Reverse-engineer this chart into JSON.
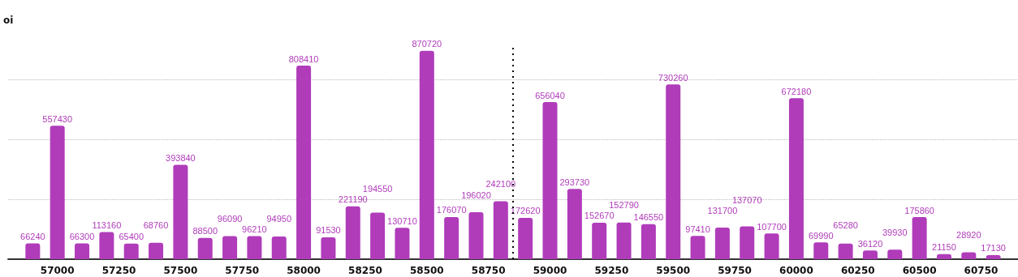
{
  "chart_data": {
    "type": "bar",
    "ylabel": "oi",
    "x": [
      56900,
      57000,
      57100,
      57200,
      57300,
      57400,
      57500,
      57600,
      57700,
      57800,
      57900,
      58000,
      58100,
      58200,
      58300,
      58400,
      58500,
      58600,
      58700,
      58800,
      58900,
      59000,
      59100,
      59200,
      59300,
      59400,
      59500,
      59600,
      59700,
      59800,
      59900,
      60000,
      60100,
      60200,
      60300,
      60400,
      60500,
      60600,
      60700,
      60800
    ],
    "values": [
      66240,
      557430,
      66300,
      113160,
      65400,
      68760,
      393840,
      88500,
      96090,
      96210,
      94950,
      808410,
      91530,
      221190,
      194550,
      130710,
      870720,
      176070,
      196020,
      242100,
      172620,
      656040,
      293730,
      152670,
      152790,
      146550,
      730260,
      97410,
      131700,
      137070,
      107700,
      672180,
      69990,
      65280,
      36120,
      39930,
      175860,
      21150,
      28920,
      17130
    ],
    "color": "#b03cba",
    "xlim": [
      56800,
      60900
    ],
    "xticks": [
      57000,
      57250,
      57500,
      57750,
      58000,
      58250,
      58500,
      58750,
      59000,
      59250,
      59500,
      59750,
      60000,
      60250,
      60500,
      60750
    ],
    "ylim": [
      0,
      900000
    ],
    "yticks": [
      {
        "value": 0,
        "label": null
      },
      {
        "value": 250000,
        "label": null
      },
      {
        "value": 500000,
        "label": null
      },
      {
        "value": 750000,
        "label": null
      }
    ],
    "tick_labels": "x",
    "grid": "y",
    "data_labels": true,
    "ref_lines": [
      {
        "axis": "x",
        "value": 58850,
        "color": "#000000",
        "line_style": "dotted"
      }
    ]
  }
}
